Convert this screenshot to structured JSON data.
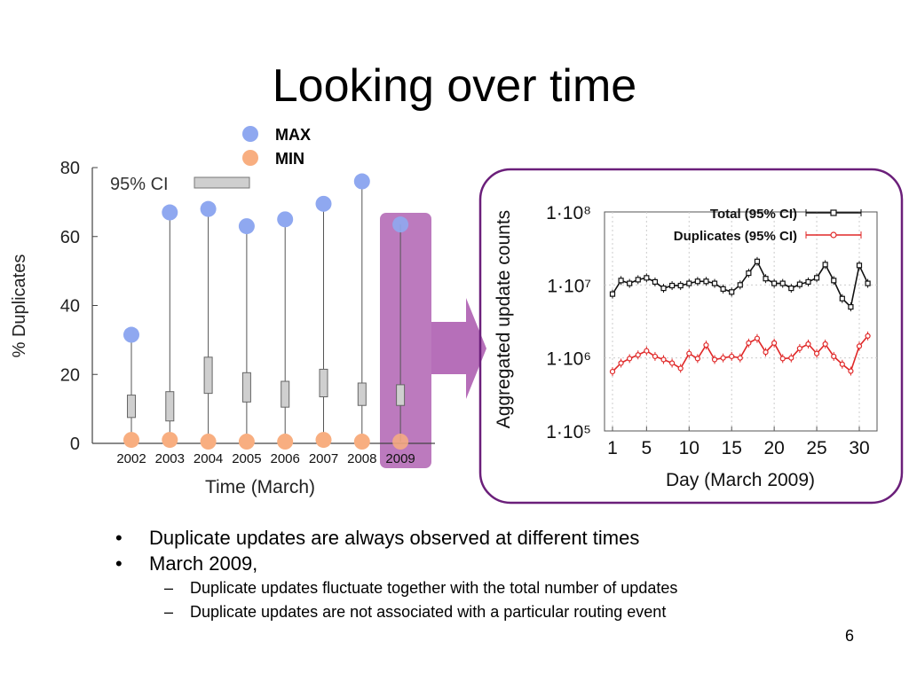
{
  "slide": {
    "title": "Looking over time",
    "page_number": "6",
    "bullets": [
      {
        "text": "Duplicate updates are always observed at different times",
        "sub": []
      },
      {
        "text": "March 2009,",
        "sub": [
          "Duplicate updates fluctuate together with the total number of updates",
          "Duplicate updates are not associated with a particular routing event"
        ]
      }
    ],
    "colors": {
      "max": "#8fa8f0",
      "min": "#f8ae80",
      "highlight": "#b66fb9",
      "frame": "#6b1f7a",
      "total": "#111111",
      "duplicates": "#e02828"
    }
  },
  "chart_data": [
    {
      "type": "box",
      "title": "",
      "xlabel": "Time (March)",
      "ylabel": "% Duplicates",
      "ylim": [
        0,
        80
      ],
      "yticks": [
        0,
        20,
        40,
        60,
        80
      ],
      "categories": [
        "2002",
        "2003",
        "2004",
        "2005",
        "2006",
        "2007",
        "2008",
        "2009"
      ],
      "max": [
        31.5,
        67,
        68,
        63,
        65,
        69.5,
        76,
        63.5
      ],
      "min": [
        1,
        1,
        0.5,
        0.5,
        0.5,
        1,
        0.5,
        0.5
      ],
      "ci_low": [
        7.5,
        6.5,
        14.5,
        12,
        10.5,
        13.5,
        11,
        11
      ],
      "ci_high": [
        14,
        15,
        25,
        20.5,
        18,
        21.5,
        17.5,
        17
      ],
      "legend": {
        "max_label": "MAX",
        "min_label": "MIN",
        "ci_label": "95% CI"
      },
      "highlight_category": "2009"
    },
    {
      "type": "line",
      "title": "",
      "xlabel": "Day (March 2009)",
      "ylabel": "Aggregated update counts",
      "yscale": "log",
      "ylim": [
        100000,
        100000000
      ],
      "ytick_labels": [
        "1·10⁵",
        "1·10⁶",
        "1·10⁷",
        "1·10⁸"
      ],
      "xticks": [
        1,
        5,
        10,
        15,
        20,
        25,
        30
      ],
      "x": [
        1,
        2,
        3,
        4,
        5,
        6,
        7,
        8,
        9,
        10,
        11,
        12,
        13,
        14,
        15,
        16,
        17,
        18,
        19,
        20,
        21,
        22,
        23,
        24,
        25,
        26,
        27,
        28,
        29,
        30,
        31
      ],
      "series": [
        {
          "name": "Total (95% CI)",
          "values": [
            7500000,
            11500000,
            10500000,
            11800000,
            12500000,
            11000000,
            9000000,
            9800000,
            9800000,
            10500000,
            11200000,
            11200000,
            10500000,
            8800000,
            8000000,
            10000000,
            14500000,
            21000000,
            12200000,
            10500000,
            10500000,
            9000000,
            10200000,
            11000000,
            12500000,
            19000000,
            11500000,
            6500000,
            5000000,
            18500000,
            10500000
          ]
        },
        {
          "name": "Duplicates (95% CI)",
          "values": [
            650000,
            850000,
            980000,
            1100000,
            1250000,
            1050000,
            950000,
            850000,
            720000,
            1150000,
            980000,
            1500000,
            950000,
            1000000,
            1050000,
            1000000,
            1600000,
            1850000,
            1200000,
            1600000,
            980000,
            1000000,
            1350000,
            1550000,
            1150000,
            1550000,
            1050000,
            820000,
            660000,
            1450000,
            2000000
          ]
        }
      ],
      "legend": "top-right"
    }
  ]
}
